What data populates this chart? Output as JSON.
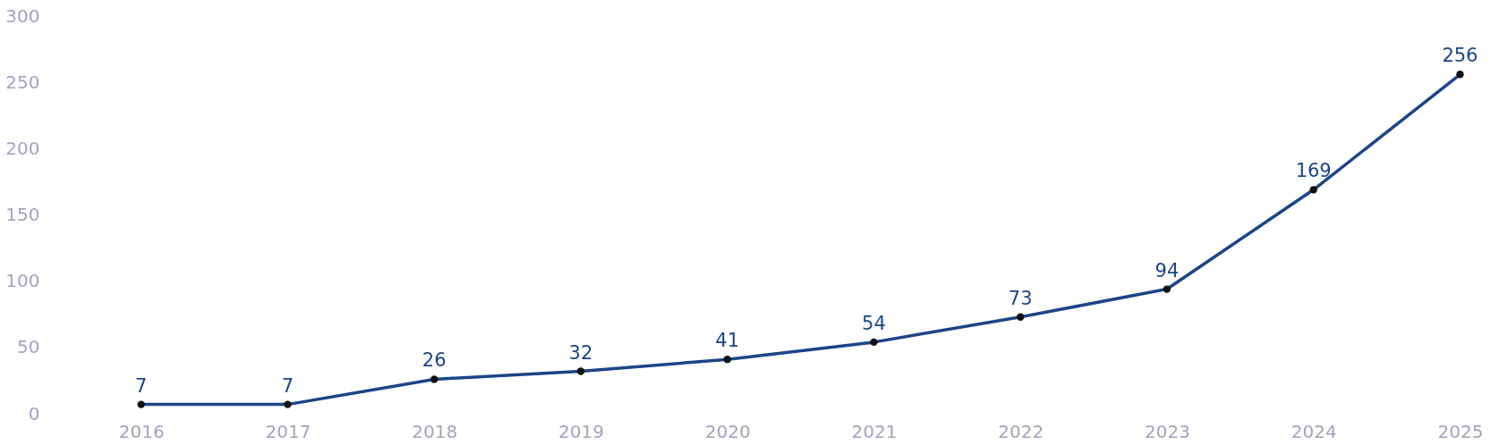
{
  "chart_data": {
    "type": "line",
    "categories": [
      "2016",
      "2017",
      "2018",
      "2019",
      "2020",
      "2021",
      "2022",
      "2023",
      "2024",
      "2025"
    ],
    "series": [
      {
        "color": "#1b4586",
        "values": [
          7,
          7,
          26,
          32,
          41,
          54,
          73,
          94,
          169,
          256
        ]
      }
    ],
    "ylim": [
      0,
      300
    ],
    "yticks": [
      0,
      50,
      100,
      150,
      200,
      250,
      300
    ],
    "marker": "circle",
    "line_style": "solid",
    "data_labels": true
  }
}
